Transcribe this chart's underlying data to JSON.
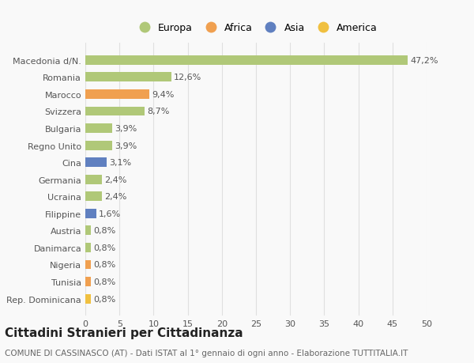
{
  "categories": [
    "Rep. Dominicana",
    "Tunisia",
    "Nigeria",
    "Danimarca",
    "Austria",
    "Filippine",
    "Ucraina",
    "Germania",
    "Cina",
    "Regno Unito",
    "Bulgaria",
    "Svizzera",
    "Marocco",
    "Romania",
    "Macedonia d/N."
  ],
  "values": [
    0.8,
    0.8,
    0.8,
    0.8,
    0.8,
    1.6,
    2.4,
    2.4,
    3.1,
    3.9,
    3.9,
    8.7,
    9.4,
    12.6,
    47.2
  ],
  "bar_colors": [
    "#f0c040",
    "#f0a050",
    "#f0a050",
    "#b0c878",
    "#b0c878",
    "#6080c0",
    "#b0c878",
    "#b0c878",
    "#6080c0",
    "#b0c878",
    "#b0c878",
    "#b0c878",
    "#f0a050",
    "#b0c878",
    "#b0c878"
  ],
  "labels": [
    "0,8%",
    "0,8%",
    "0,8%",
    "0,8%",
    "0,8%",
    "1,6%",
    "2,4%",
    "2,4%",
    "3,1%",
    "3,9%",
    "3,9%",
    "8,7%",
    "9,4%",
    "12,6%",
    "47,2%"
  ],
  "legend_labels": [
    "Europa",
    "Africa",
    "Asia",
    "America"
  ],
  "legend_colors": [
    "#b0c878",
    "#f0a050",
    "#6080c0",
    "#f0c040"
  ],
  "title": "Cittadini Stranieri per Cittadinanza",
  "subtitle": "COMUNE DI CASSINASCO (AT) - Dati ISTAT al 1° gennaio di ogni anno - Elaborazione TUTTITALIA.IT",
  "xlim": [
    0,
    50
  ],
  "xticks": [
    0,
    5,
    10,
    15,
    20,
    25,
    30,
    35,
    40,
    45,
    50
  ],
  "background_color": "#f9f9f9",
  "grid_color": "#e0e0e0",
  "bar_height": 0.55,
  "title_fontsize": 11,
  "subtitle_fontsize": 7.5,
  "tick_fontsize": 8,
  "label_fontsize": 8
}
